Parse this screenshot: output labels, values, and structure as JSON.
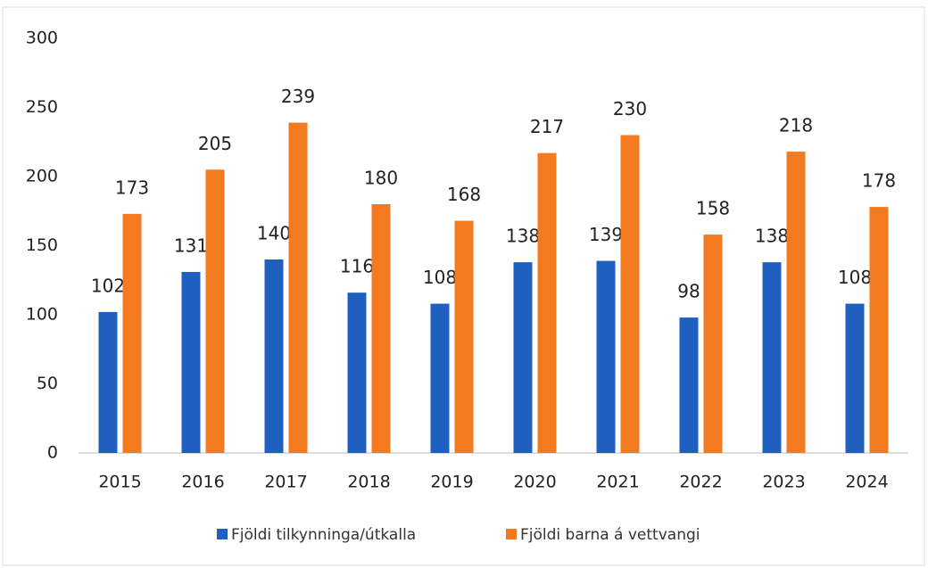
{
  "chart_data": {
    "type": "bar",
    "categories": [
      "2015",
      "2016",
      "2017",
      "2018",
      "2019",
      "2020",
      "2021",
      "2022",
      "2023",
      "2024"
    ],
    "series": [
      {
        "name": "Fjöldi tilkynninga/útkalla",
        "color": "#1f5fbf",
        "values": [
          102,
          131,
          140,
          116,
          108,
          138,
          139,
          98,
          138,
          108
        ]
      },
      {
        "name": "Fjöldi barna á vettvangi",
        "color": "#f47a1f",
        "values": [
          173,
          205,
          239,
          180,
          168,
          217,
          230,
          158,
          218,
          178
        ]
      }
    ],
    "ylim": [
      0,
      300
    ],
    "yticks": [
      0,
      50,
      100,
      150,
      200,
      250,
      300
    ],
    "grid": false,
    "legend": "bottom"
  }
}
